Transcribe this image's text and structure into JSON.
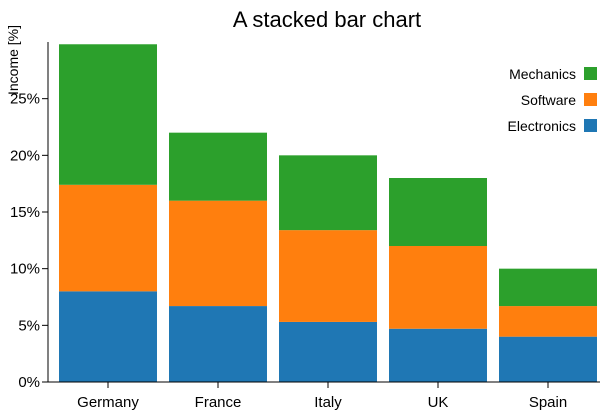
{
  "chart_data": {
    "type": "bar",
    "stacked": true,
    "title": "A stacked bar chart",
    "ylabel": "Income [%]",
    "xlabel": "",
    "categories": [
      "Germany",
      "France",
      "Italy",
      "UK",
      "Spain"
    ],
    "yticks": [
      "0%",
      "5%",
      "10%",
      "15%",
      "20%",
      "25%"
    ],
    "ylim": [
      0,
      30
    ],
    "legend_position": "top-right",
    "series": [
      {
        "name": "Electronics",
        "color": "#1f77b4",
        "values": [
          8.0,
          6.7,
          5.3,
          4.7,
          4.0
        ]
      },
      {
        "name": "Software",
        "color": "#ff7f0e",
        "values": [
          9.4,
          9.3,
          8.1,
          7.3,
          2.7
        ]
      },
      {
        "name": "Mechanics",
        "color": "#2ca02c",
        "values": [
          12.4,
          6.0,
          6.6,
          6.0,
          3.3
        ]
      }
    ]
  }
}
